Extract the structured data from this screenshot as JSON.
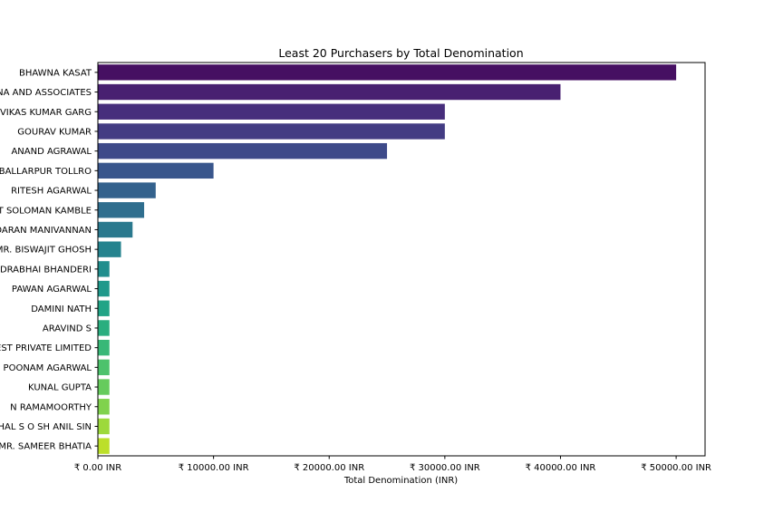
{
  "chart_data": {
    "type": "bar",
    "orientation": "horizontal",
    "title": "Least 20 Purchasers by Total Denomination",
    "xlabel": "Total Denomination (INR)",
    "ylabel": "",
    "xlim": [
      0,
      52500
    ],
    "x_ticks": [
      0,
      10000,
      20000,
      30000,
      40000,
      50000
    ],
    "x_tick_labels": [
      "₹ 0.00 INR",
      "₹ 10000.00 INR",
      "₹ 20000.00 INR",
      "₹ 30000.00 INR",
      "₹ 40000.00 INR",
      "₹ 50000.00 INR"
    ],
    "grid": false,
    "categories": [
      "BHAWNA KASAT",
      "NA AND ASSOCIATES",
      "VIKAS KUMAR GARG",
      "GOURAV KUMAR",
      "ANAND AGRAWAL",
      "BALLARPUR TOLLRO",
      "RITESH AGARWAL",
      "T SOLOMAN KAMBLE",
      "DARAN MANIVANNAN",
      "MR. BISWAJIT GHOSH",
      "DRABHAI BHANDERI",
      "PAWAN AGARWAL",
      "DAMINI NATH",
      "ARAVIND S",
      "EST PRIVATE LIMITED",
      "POONAM AGARWAL",
      "KUNAL GUPTA",
      "N RAMAMOORTHY",
      "HAL S O SH ANIL SIN",
      "MR. SAMEER BHATIA"
    ],
    "values": [
      50000,
      40000,
      30000,
      30000,
      25000,
      10000,
      5000,
      4000,
      3000,
      2000,
      1000,
      1000,
      1000,
      1000,
      1000,
      1000,
      1000,
      1000,
      1000,
      1000
    ],
    "colors": [
      "#440154",
      "#481a6c",
      "#472f7d",
      "#414487",
      "#39568c",
      "#31688e",
      "#2a788e",
      "#23888e",
      "#1f988b",
      "#22a884",
      "#35b779",
      "#54c568",
      "#7ad151",
      "#a5db36",
      "#d2e21b",
      "#fde725"
    ]
  }
}
